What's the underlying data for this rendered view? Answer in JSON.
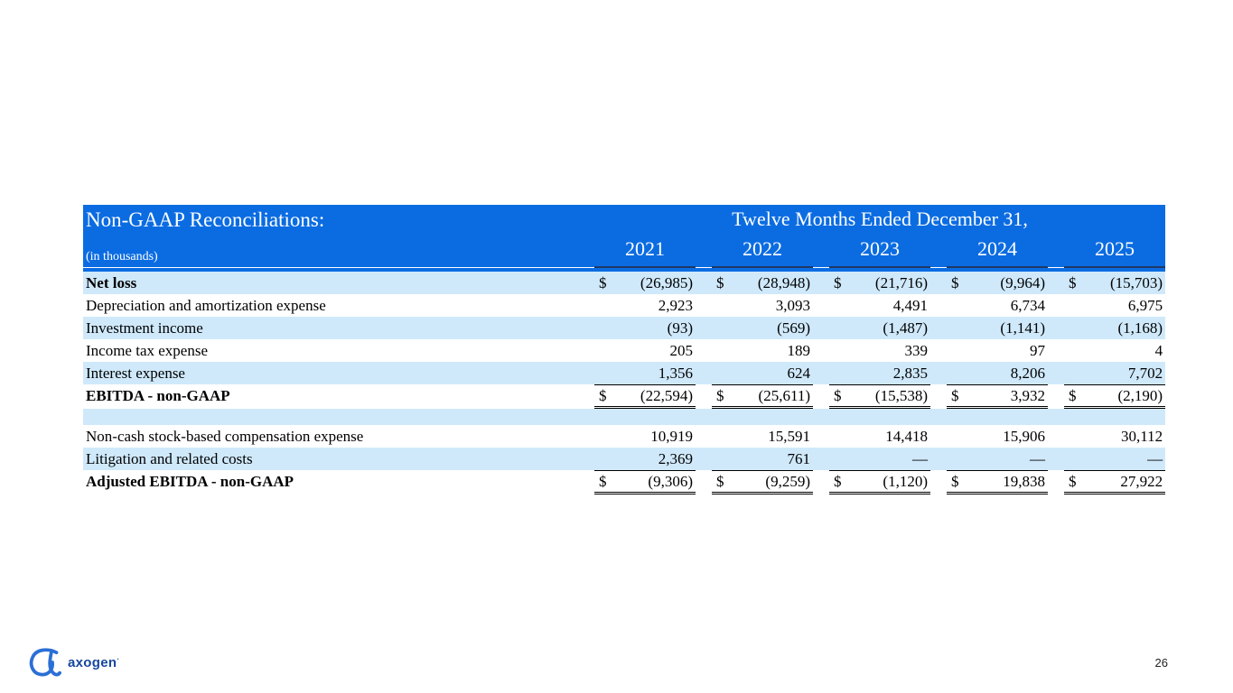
{
  "colors": {
    "header_blue": "#0b6ce2",
    "row_alt_blue": "#cfe9fb",
    "year_underline": "#1f3864",
    "line_black": "#000000",
    "logo_mark_blue": "#2a6fd6",
    "logo_text_navy": "#17469e"
  },
  "table": {
    "title": "Non-GAAP Reconciliations:",
    "subtitle": "(in thousands)",
    "period_header": "Twelve Months Ended December 31,",
    "years": [
      "2021",
      "2022",
      "2023",
      "2024",
      "2025"
    ],
    "rows": [
      {
        "label": "Net loss",
        "bold": true,
        "dollar": true,
        "alt": true,
        "values": [
          "(26,985)",
          "(28,948)",
          "(21,716)",
          "(9,964)",
          "(15,703)"
        ]
      },
      {
        "label": "Depreciation and amortization expense",
        "values": [
          "2,923",
          "3,093",
          "4,491",
          "6,734",
          "6,975"
        ]
      },
      {
        "label": "Investment income",
        "alt": true,
        "values": [
          "(93)",
          "(569)",
          "(1,487)",
          "(1,141)",
          "(1,168)"
        ]
      },
      {
        "label": "Income tax expense",
        "values": [
          "205",
          "189",
          "339",
          "97",
          "4"
        ]
      },
      {
        "label": "Interest expense",
        "alt": true,
        "values": [
          "1,356",
          "624",
          "2,835",
          "8,206",
          "7,702"
        ]
      },
      {
        "label": "EBITDA - non-GAAP",
        "bold": true,
        "dollar": true,
        "topline": true,
        "doubleline": true,
        "values": [
          "(22,594)",
          "(25,611)",
          "(15,538)",
          "3,932",
          "(2,190)"
        ]
      },
      {
        "spacer": true,
        "alt": true
      },
      {
        "label": "Non-cash stock-based compensation expense",
        "values": [
          "10,919",
          "15,591",
          "14,418",
          "15,906",
          "30,112"
        ]
      },
      {
        "label": "Litigation and related costs",
        "alt": true,
        "values": [
          "2,369",
          "761",
          "—",
          "—",
          "—"
        ]
      },
      {
        "label": "Adjusted EBITDA - non-GAAP",
        "bold": true,
        "dollar": true,
        "topline": true,
        "doubleline": true,
        "values": [
          "(9,306)",
          "(9,259)",
          "(1,120)",
          "19,838",
          "27,922"
        ]
      }
    ]
  },
  "footer": {
    "logo_text": "axogen",
    "logo_trademark": "·",
    "page_number": "26"
  }
}
